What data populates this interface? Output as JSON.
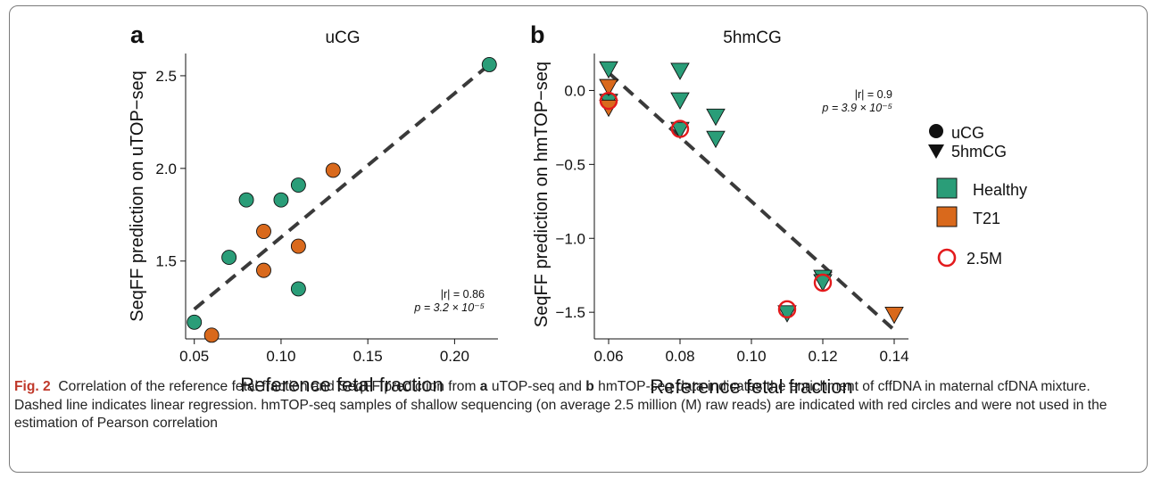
{
  "figure": {
    "caption_label": "Fig. 2",
    "caption_parts": [
      "Correlation of the reference fetal fraction and SeqFF prediction from ",
      "a",
      " uTOP-seq and ",
      "b",
      " hmTOP-seq data indicates the enrichment of cffDNA in maternal cfDNA mixture. Dashed line indicates linear regression. hmTOP-seq samples of shallow sequencing (on average 2.5 million (M) raw reads) are indicated with red circles and were not used in the estimation of Pearson correlation"
    ]
  },
  "colors": {
    "healthy": "#2a9d78",
    "t21": "#d9691c",
    "shallow": "#e31a1c",
    "regression": "#3a3a3a"
  },
  "legend": {
    "shape_items": [
      {
        "label": "uCG",
        "shape": "circle"
      },
      {
        "label": "5hmCG",
        "shape": "triangle-down"
      }
    ],
    "color_items": [
      {
        "label": "Healthy",
        "color": "#2a9d78"
      },
      {
        "label": "T21",
        "color": "#d9691c"
      }
    ],
    "shallow_item": {
      "label": "2.5M",
      "shape": "open-circle"
    }
  },
  "chart_data": [
    {
      "panel": "a",
      "type": "scatter",
      "title": "uCG",
      "xlabel": "Reference fetal fraction",
      "ylabel": "SeqFF prediction on uTOP−seq",
      "xlim": [
        0.045,
        0.225
      ],
      "ylim": [
        1.08,
        2.62
      ],
      "xticks": [
        0.05,
        0.1,
        0.15,
        0.2
      ],
      "xtick_labels": [
        "0.05",
        "0.10",
        "0.15",
        "0.20"
      ],
      "yticks": [
        1.5,
        2.0,
        2.5
      ],
      "ytick_labels": [
        "1.5",
        "2.0",
        "2.5"
      ],
      "stat_line1": "|r| = 0.86",
      "stat_line2": "p = 3.2 × 10⁻⁵",
      "regression": {
        "x": [
          0.05,
          0.22
        ],
        "y": [
          1.24,
          2.56
        ]
      },
      "series": [
        {
          "name": "Healthy",
          "marker": "circle",
          "color": "#2a9d78",
          "points": [
            [
              0.05,
              1.17
            ],
            [
              0.07,
              1.52
            ],
            [
              0.08,
              1.83
            ],
            [
              0.1,
              1.83
            ],
            [
              0.11,
              1.91
            ],
            [
              0.11,
              1.35
            ],
            [
              0.22,
              2.56
            ]
          ]
        },
        {
          "name": "T21",
          "marker": "circle",
          "color": "#d9691c",
          "points": [
            [
              0.06,
              1.1
            ],
            [
              0.09,
              1.66
            ],
            [
              0.09,
              1.45
            ],
            [
              0.11,
              1.58
            ],
            [
              0.13,
              1.99
            ]
          ]
        }
      ]
    },
    {
      "panel": "b",
      "type": "scatter",
      "title": "5hmCG",
      "xlabel": "Reference fetal fraction",
      "ylabel": "SeqFF prediction on hmTOP−seq",
      "xlim": [
        0.056,
        0.144
      ],
      "ylim": [
        -1.68,
        0.25
      ],
      "xticks": [
        0.06,
        0.08,
        0.1,
        0.12,
        0.14
      ],
      "xtick_labels": [
        "0.06",
        "0.08",
        "0.10",
        "0.12",
        "0.14"
      ],
      "yticks": [
        0.0,
        -0.5,
        -1.0,
        -1.5
      ],
      "ytick_labels": [
        "0.0",
        "−0.5",
        "−1.0",
        "−1.5"
      ],
      "stat_line1": "|r| = 0.9",
      "stat_line2": "p = 3.9 × 10⁻⁵",
      "regression": {
        "x": [
          0.06,
          0.14
        ],
        "y": [
          0.12,
          -1.62
        ]
      },
      "series": [
        {
          "name": "Healthy",
          "marker": "triangle-down",
          "color": "#2a9d78",
          "points": [
            [
              0.06,
              0.14
            ],
            [
              0.06,
              -0.08
            ],
            [
              0.08,
              0.13
            ],
            [
              0.08,
              -0.07
            ],
            [
              0.08,
              -0.27
            ],
            [
              0.09,
              -0.18
            ],
            [
              0.09,
              -0.33
            ],
            [
              0.11,
              -1.51
            ],
            [
              0.12,
              -1.27
            ],
            [
              0.12,
              -1.3
            ]
          ]
        },
        {
          "name": "T21",
          "marker": "triangle-down",
          "color": "#d9691c",
          "points": [
            [
              0.06,
              0.02
            ],
            [
              0.06,
              -0.12
            ],
            [
              0.14,
              -1.52
            ]
          ]
        },
        {
          "name": "2.5M",
          "marker": "open-circle",
          "color": "#e31a1c",
          "points": [
            [
              0.06,
              -0.07
            ],
            [
              0.08,
              -0.26
            ],
            [
              0.11,
              -1.48
            ],
            [
              0.12,
              -1.3
            ]
          ]
        }
      ]
    }
  ]
}
